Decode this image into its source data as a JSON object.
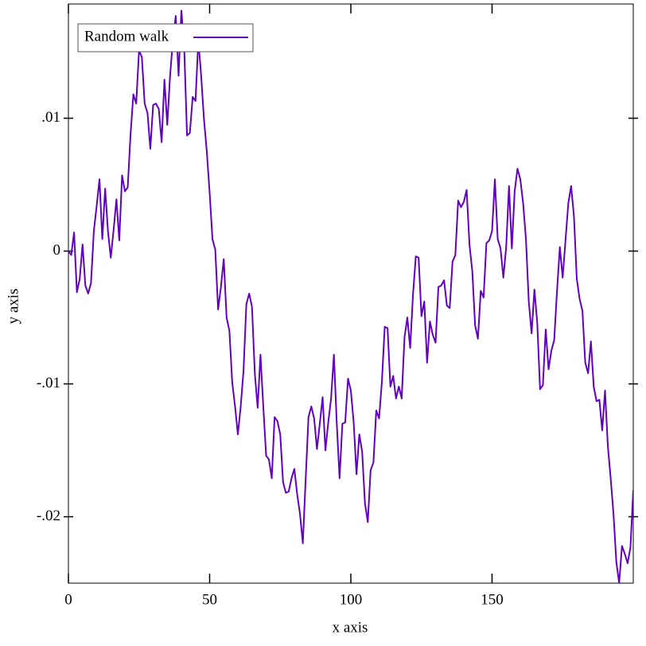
{
  "chart_data": {
    "type": "line",
    "x_label": "x axis",
    "y_label": "y axis",
    "x": [
      0,
      1,
      2,
      3,
      4,
      5,
      6,
      7,
      8,
      9,
      10,
      11,
      12,
      13,
      14,
      15,
      16,
      17,
      18,
      19,
      20,
      21,
      22,
      23,
      24,
      25,
      26,
      27,
      28,
      29,
      30,
      31,
      32,
      33,
      34,
      35,
      36,
      37,
      38,
      39,
      40,
      41,
      42,
      43,
      44,
      45,
      46,
      47,
      48,
      49,
      50,
      51,
      52,
      53,
      54,
      55,
      56,
      57,
      58,
      59,
      60,
      61,
      62,
      63,
      64,
      65,
      66,
      67,
      68,
      69,
      70,
      71,
      72,
      73,
      74,
      75,
      76,
      77,
      78,
      79,
      80,
      81,
      82,
      83,
      84,
      85,
      86,
      87,
      88,
      89,
      90,
      91,
      92,
      93,
      94,
      95,
      96,
      97,
      98,
      99,
      100,
      101,
      102,
      103,
      104,
      105,
      106,
      107,
      108,
      109,
      110,
      111,
      112,
      113,
      114,
      115,
      116,
      117,
      118,
      119,
      120,
      121,
      122,
      123,
      124,
      125,
      126,
      127,
      128,
      129,
      130,
      131,
      132,
      133,
      134,
      135,
      136,
      137,
      138,
      139,
      140,
      141,
      142,
      143,
      144,
      145,
      146,
      147,
      148,
      149,
      150,
      151,
      152,
      153,
      154,
      155,
      156,
      157,
      158,
      159,
      160,
      161,
      162,
      163,
      164,
      165,
      166,
      167,
      168,
      169,
      170,
      171,
      172,
      173,
      174,
      175,
      176,
      177,
      178,
      179,
      180,
      181,
      182,
      183,
      184,
      185,
      186,
      187,
      188,
      189,
      190,
      191,
      192,
      193,
      194,
      195,
      196,
      197,
      198,
      199,
      200
    ],
    "series": [
      {
        "name": "Random walk",
        "color": "#6200c0",
        "values": [
          0,
          -0.0003,
          0.0014,
          -0.0031,
          -0.0021,
          0.0005,
          -0.0026,
          -0.0032,
          -0.0024,
          0.0015,
          0.0034,
          0.0054,
          0.0009,
          0.0047,
          0.0015,
          -0.0005,
          0.0016,
          0.0039,
          0.0008,
          0.0057,
          0.0045,
          0.0048,
          0.0088,
          0.0118,
          0.0111,
          0.0151,
          0.0146,
          0.0111,
          0.0104,
          0.0077,
          0.011,
          0.0111,
          0.0107,
          0.0082,
          0.0129,
          0.0095,
          0.0132,
          0.0159,
          0.0177,
          0.0132,
          0.0181,
          0.0153,
          0.0087,
          0.0089,
          0.0116,
          0.0113,
          0.0159,
          0.0132,
          0.0099,
          0.0075,
          0.0044,
          0.0009,
          0.0001,
          -0.0044,
          -0.0027,
          -0.0006,
          -0.005,
          -0.006,
          -0.0099,
          -0.0117,
          -0.0138,
          -0.0117,
          -0.009,
          -0.004,
          -0.0032,
          -0.0042,
          -0.0092,
          -0.0118,
          -0.0078,
          -0.0117,
          -0.0154,
          -0.0157,
          -0.0171,
          -0.0125,
          -0.0128,
          -0.0138,
          -0.0174,
          -0.0182,
          -0.0181,
          -0.0171,
          -0.0164,
          -0.0183,
          -0.0198,
          -0.022,
          -0.0172,
          -0.0125,
          -0.0117,
          -0.0126,
          -0.0149,
          -0.013,
          -0.011,
          -0.015,
          -0.0129,
          -0.0111,
          -0.0078,
          -0.0129,
          -0.0171,
          -0.013,
          -0.0129,
          -0.0096,
          -0.0105,
          -0.0129,
          -0.0168,
          -0.0138,
          -0.0151,
          -0.019,
          -0.0204,
          -0.0165,
          -0.0159,
          -0.012,
          -0.0126,
          -0.0098,
          -0.0057,
          -0.0058,
          -0.0102,
          -0.0094,
          -0.0111,
          -0.0102,
          -0.0111,
          -0.0065,
          -0.005,
          -0.0073,
          -0.0033,
          -0.0004,
          -0.0005,
          -0.0049,
          -0.0038,
          -0.0084,
          -0.0053,
          -0.0063,
          -0.0069,
          -0.0027,
          -0.0026,
          -0.0022,
          -0.0041,
          -0.0043,
          -0.0008,
          -0.0003,
          0.0038,
          0.0033,
          0.0037,
          0.0046,
          0.0005,
          -0.0015,
          -0.0056,
          -0.0066,
          -0.003,
          -0.0035,
          0.0006,
          0.0008,
          0.0015,
          0.0054,
          0.0009,
          0.0002,
          -0.002,
          0.0003,
          0.0049,
          0.0002,
          0.0045,
          0.0062,
          0.0054,
          0.0036,
          0.0009,
          -0.0038,
          -0.0062,
          -0.0029,
          -0.0054,
          -0.0104,
          -0.0101,
          -0.0059,
          -0.0089,
          -0.0075,
          -0.0067,
          -0.003,
          0.0003,
          -0.002,
          0.0008,
          0.0036,
          0.0049,
          0.0026,
          -0.0021,
          -0.0036,
          -0.0045,
          -0.0084,
          -0.0092,
          -0.0068,
          -0.0102,
          -0.0113,
          -0.0112,
          -0.0135,
          -0.0105,
          -0.0147,
          -0.0171,
          -0.0198,
          -0.0234,
          -0.025,
          -0.0222,
          -0.0228,
          -0.0235,
          -0.0223,
          -0.018
        ]
      }
    ],
    "xlim": [
      0,
      200
    ],
    "xticks": [
      0,
      50,
      100,
      150
    ],
    "ylim": [
      -0.025,
      0.0186
    ],
    "yticks": [
      {
        "value": -0.02,
        "label": "-.02"
      },
      {
        "value": -0.01,
        "label": "-.01"
      },
      0,
      {
        "value": 0.01,
        "label": ".01"
      }
    ],
    "legend": "top-left"
  }
}
